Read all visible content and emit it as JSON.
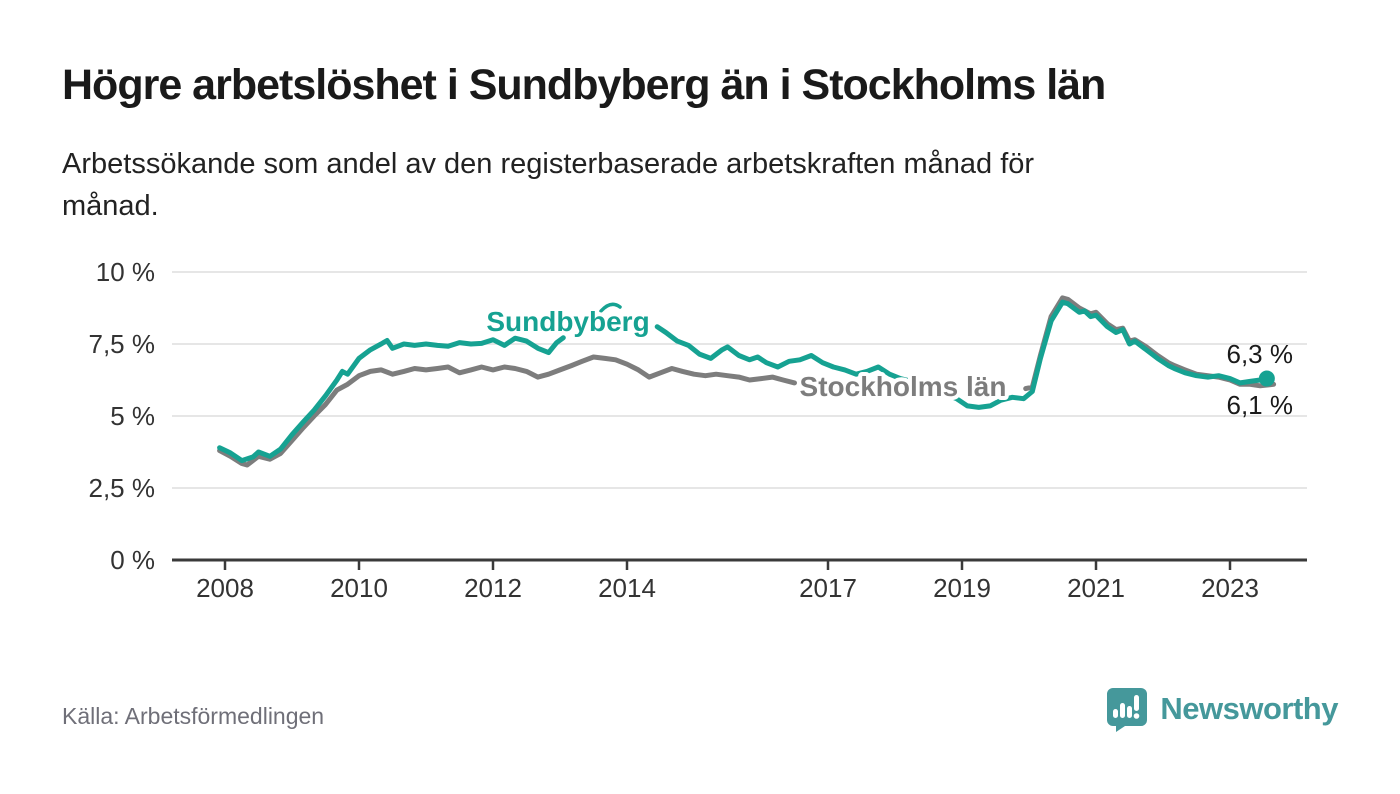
{
  "header": {
    "title": "Högre arbetslöshet i Sundbyberg än i Stockholms län",
    "subtitle_lines": [
      "Arbetssökande som andel av den registerbaserade arbetskraften månad för",
      "månad."
    ]
  },
  "footer": {
    "source_label": "Källa: Arbetsförmedlingen",
    "brand_name": "Newsworthy",
    "brand_icon": "bar-chart-speech-bubble-icon"
  },
  "colors": {
    "sundbyberg_teal": "#16a292",
    "stockholm_gray": "#7d7d7d",
    "axis_text": "#333333",
    "gridline": "#dddddd",
    "axis_line": "#3a3a3a",
    "value_label": "#1a1a1a",
    "brand_teal": "#45989b",
    "background": "#ffffff"
  },
  "chart_data": {
    "type": "line",
    "title": "Högre arbetslöshet i Sundbyberg än i Stockholms län",
    "xlabel": "",
    "ylabel": "Arbetssökande som andel av den registerbaserade arbetskraften",
    "x_unit": "decimal_year",
    "x_range": [
      2007.2,
      2024.1
    ],
    "ylim": [
      0,
      10
    ],
    "grid": true,
    "legend_position": "inline-labels",
    "y_ticks": [
      {
        "value": 0,
        "label": "0 %"
      },
      {
        "value": 2.5,
        "label": "2,5 %"
      },
      {
        "value": 5,
        "label": "5 %"
      },
      {
        "value": 7.5,
        "label": "7,5 %"
      },
      {
        "value": 10,
        "label": "10 %"
      }
    ],
    "x_ticks": [
      {
        "value": 2008,
        "label": "2008"
      },
      {
        "value": 2010,
        "label": "2010"
      },
      {
        "value": 2012,
        "label": "2012"
      },
      {
        "value": 2014,
        "label": "2014"
      },
      {
        "value": 2017,
        "label": "2017"
      },
      {
        "value": 2019,
        "label": "2019"
      },
      {
        "value": 2021,
        "label": "2021"
      },
      {
        "value": 2023,
        "label": "2023"
      }
    ],
    "series": [
      {
        "name": "Sundbyberg",
        "color": "#16a292",
        "end_label": "6,3 %",
        "end_value": 6.3,
        "end_dot": true,
        "segments": [
          [
            [
              2007.92,
              3.9
            ],
            [
              2008.08,
              3.72
            ],
            [
              2008.25,
              3.45
            ],
            [
              2008.42,
              3.58
            ],
            [
              2008.5,
              3.75
            ],
            [
              2008.67,
              3.6
            ],
            [
              2008.83,
              3.85
            ],
            [
              2009.0,
              4.35
            ],
            [
              2009.17,
              4.8
            ],
            [
              2009.33,
              5.2
            ],
            [
              2009.5,
              5.7
            ],
            [
              2009.67,
              6.25
            ],
            [
              2009.75,
              6.55
            ],
            [
              2009.83,
              6.45
            ],
            [
              2010.0,
              7.0
            ],
            [
              2010.17,
              7.3
            ],
            [
              2010.33,
              7.5
            ],
            [
              2010.42,
              7.62
            ],
            [
              2010.5,
              7.35
            ],
            [
              2010.67,
              7.5
            ],
            [
              2010.83,
              7.45
            ],
            [
              2011.0,
              7.5
            ],
            [
              2011.17,
              7.45
            ],
            [
              2011.33,
              7.42
            ],
            [
              2011.5,
              7.55
            ],
            [
              2011.67,
              7.5
            ],
            [
              2011.83,
              7.52
            ],
            [
              2012.0,
              7.65
            ],
            [
              2012.17,
              7.45
            ],
            [
              2012.33,
              7.7
            ],
            [
              2012.5,
              7.6
            ],
            [
              2012.67,
              7.35
            ],
            [
              2012.83,
              7.2
            ],
            [
              2012.95,
              7.55
            ],
            [
              2013.05,
              7.72
            ]
          ],
          [
            [
              2014.45,
              8.1
            ],
            [
              2014.58,
              7.9
            ],
            [
              2014.75,
              7.6
            ],
            [
              2014.92,
              7.45
            ],
            [
              2015.08,
              7.15
            ],
            [
              2015.25,
              7.0
            ],
            [
              2015.42,
              7.3
            ],
            [
              2015.5,
              7.4
            ],
            [
              2015.67,
              7.1
            ],
            [
              2015.83,
              6.95
            ],
            [
              2015.95,
              7.05
            ],
            [
              2016.08,
              6.85
            ],
            [
              2016.25,
              6.7
            ],
            [
              2016.42,
              6.9
            ],
            [
              2016.58,
              6.95
            ],
            [
              2016.75,
              7.1
            ],
            [
              2016.92,
              6.85
            ],
            [
              2017.08,
              6.7
            ],
            [
              2017.25,
              6.6
            ],
            [
              2017.42,
              6.45
            ],
            [
              2017.58,
              6.55
            ],
            [
              2017.75,
              6.7
            ],
            [
              2017.92,
              6.45
            ],
            [
              2018.08,
              6.3
            ],
            [
              2018.25,
              6.2
            ],
            [
              2018.42,
              5.95
            ],
            [
              2018.58,
              6.05
            ],
            [
              2018.75,
              5.75
            ],
            [
              2018.92,
              5.6
            ],
            [
              2019.08,
              5.35
            ],
            [
              2019.25,
              5.3
            ],
            [
              2019.42,
              5.35
            ],
            [
              2019.58,
              5.55
            ],
            [
              2019.75,
              5.65
            ],
            [
              2019.92,
              5.6
            ],
            [
              2020.05,
              5.85
            ],
            [
              2020.17,
              7.0
            ],
            [
              2020.33,
              8.3
            ],
            [
              2020.5,
              8.95
            ],
            [
              2020.58,
              8.9
            ],
            [
              2020.75,
              8.6
            ],
            [
              2020.83,
              8.65
            ],
            [
              2020.92,
              8.45
            ],
            [
              2021.0,
              8.5
            ],
            [
              2021.17,
              8.1
            ],
            [
              2021.3,
              7.9
            ],
            [
              2021.4,
              8.0
            ],
            [
              2021.5,
              7.5
            ],
            [
              2021.58,
              7.6
            ],
            [
              2021.75,
              7.3
            ],
            [
              2021.92,
              7.0
            ],
            [
              2022.08,
              6.75
            ],
            [
              2022.17,
              6.65
            ],
            [
              2022.33,
              6.5
            ],
            [
              2022.5,
              6.4
            ],
            [
              2022.67,
              6.35
            ],
            [
              2022.83,
              6.4
            ],
            [
              2023.0,
              6.3
            ],
            [
              2023.15,
              6.15
            ],
            [
              2023.3,
              6.2
            ],
            [
              2023.45,
              6.25
            ],
            [
              2023.55,
              6.3
            ]
          ]
        ]
      },
      {
        "name": "Stockholms län",
        "color": "#7d7d7d",
        "end_label": "6,1 %",
        "end_value": 6.1,
        "end_dot": false,
        "segments": [
          [
            [
              2007.92,
              3.8
            ],
            [
              2008.08,
              3.6
            ],
            [
              2008.25,
              3.35
            ],
            [
              2008.33,
              3.3
            ],
            [
              2008.5,
              3.6
            ],
            [
              2008.67,
              3.5
            ],
            [
              2008.83,
              3.7
            ],
            [
              2009.0,
              4.15
            ],
            [
              2009.17,
              4.6
            ],
            [
              2009.33,
              5.0
            ],
            [
              2009.5,
              5.4
            ],
            [
              2009.67,
              5.9
            ],
            [
              2009.83,
              6.1
            ],
            [
              2010.0,
              6.4
            ],
            [
              2010.17,
              6.55
            ],
            [
              2010.33,
              6.6
            ],
            [
              2010.5,
              6.45
            ],
            [
              2010.67,
              6.55
            ],
            [
              2010.83,
              6.65
            ],
            [
              2011.0,
              6.6
            ],
            [
              2011.17,
              6.65
            ],
            [
              2011.33,
              6.7
            ],
            [
              2011.5,
              6.5
            ],
            [
              2011.67,
              6.6
            ],
            [
              2011.83,
              6.7
            ],
            [
              2012.0,
              6.6
            ],
            [
              2012.17,
              6.7
            ],
            [
              2012.33,
              6.65
            ],
            [
              2012.5,
              6.55
            ],
            [
              2012.67,
              6.35
            ],
            [
              2012.83,
              6.45
            ],
            [
              2013.0,
              6.6
            ],
            [
              2013.17,
              6.75
            ],
            [
              2013.33,
              6.9
            ],
            [
              2013.5,
              7.05
            ],
            [
              2013.67,
              7.0
            ],
            [
              2013.83,
              6.95
            ],
            [
              2014.0,
              6.8
            ],
            [
              2014.17,
              6.6
            ],
            [
              2014.33,
              6.35
            ],
            [
              2014.5,
              6.5
            ],
            [
              2014.67,
              6.65
            ],
            [
              2014.83,
              6.55
            ],
            [
              2015.0,
              6.45
            ],
            [
              2015.17,
              6.4
            ],
            [
              2015.33,
              6.45
            ],
            [
              2015.5,
              6.4
            ],
            [
              2015.67,
              6.35
            ],
            [
              2015.83,
              6.25
            ],
            [
              2016.0,
              6.3
            ],
            [
              2016.17,
              6.35
            ],
            [
              2016.33,
              6.25
            ],
            [
              2016.5,
              6.15
            ]
          ],
          [
            [
              2019.95,
              5.95
            ],
            [
              2020.05,
              6.0
            ],
            [
              2020.17,
              7.1
            ],
            [
              2020.33,
              8.45
            ],
            [
              2020.5,
              9.1
            ],
            [
              2020.58,
              9.05
            ],
            [
              2020.75,
              8.75
            ],
            [
              2020.92,
              8.55
            ],
            [
              2021.0,
              8.6
            ],
            [
              2021.17,
              8.2
            ],
            [
              2021.3,
              8.0
            ],
            [
              2021.4,
              8.05
            ],
            [
              2021.5,
              7.6
            ],
            [
              2021.58,
              7.65
            ],
            [
              2021.75,
              7.4
            ],
            [
              2021.92,
              7.1
            ],
            [
              2022.08,
              6.85
            ],
            [
              2022.17,
              6.75
            ],
            [
              2022.33,
              6.6
            ],
            [
              2022.5,
              6.45
            ],
            [
              2022.67,
              6.4
            ],
            [
              2022.83,
              6.35
            ],
            [
              2023.0,
              6.25
            ],
            [
              2023.15,
              6.1
            ],
            [
              2023.3,
              6.1
            ],
            [
              2023.45,
              6.05
            ],
            [
              2023.65,
              6.1
            ]
          ]
        ]
      }
    ]
  }
}
